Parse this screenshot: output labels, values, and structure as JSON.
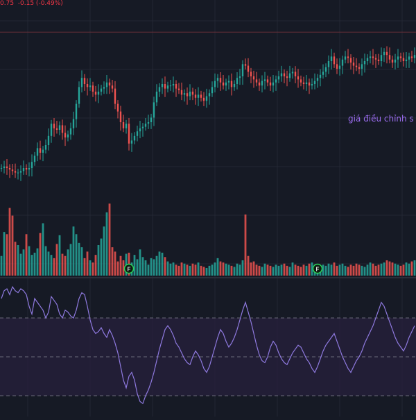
{
  "legend": {
    "close_fragment": "0.75",
    "change": "-0.15 (-0.49%)"
  },
  "annotation": {
    "text": "giá điều chỉnh s"
  },
  "colors": {
    "background": "#161a25",
    "grid": "#232733",
    "up": "#26a69a",
    "down": "#ef5350",
    "price_line": "#6b2f3a",
    "rsi_line": "#8f7ae0",
    "rsi_band": "#261f3b",
    "rsi_dash": "#6b6b7a",
    "annotation": "#9b6cf0",
    "event_marker": "#2bd45a"
  },
  "icons": {
    "event_marker": "F"
  },
  "chart_data": [
    {
      "type": "candlestick",
      "panel": "price",
      "title": "",
      "xlabel": "",
      "ylabel": "",
      "x": [
        1,
        2,
        3,
        4,
        5,
        6,
        7,
        8,
        9,
        10,
        11,
        12,
        13,
        14,
        15,
        16,
        17,
        18,
        19,
        20,
        21,
        22,
        23,
        24,
        25,
        26,
        27,
        28,
        29,
        30,
        31,
        32,
        33,
        34,
        35,
        36,
        37,
        38,
        39,
        40,
        41,
        42,
        43,
        44,
        45,
        46,
        47,
        48,
        49,
        50,
        51,
        52,
        53,
        54,
        55,
        56,
        57,
        58,
        59,
        60,
        61,
        62,
        63,
        64,
        65,
        66,
        67,
        68,
        69,
        70,
        71,
        72,
        73,
        74,
        75,
        76,
        77,
        78,
        79,
        80,
        81,
        82,
        83,
        84,
        85,
        86,
        87,
        88,
        89,
        90,
        91,
        92,
        93,
        94,
        95,
        96,
        97,
        98,
        99,
        100,
        101,
        102,
        103,
        104,
        105,
        106,
        107,
        108,
        109,
        110,
        111,
        112,
        113,
        114,
        115,
        116,
        117,
        118,
        119,
        120,
        121,
        122,
        123,
        124,
        125,
        126,
        127,
        128,
        129,
        130,
        131,
        132,
        133,
        134,
        135,
        136,
        137,
        138,
        139,
        140,
        141,
        142,
        143,
        144,
        145,
        146,
        147,
        148,
        149,
        150
      ],
      "close": [
        33.0,
        33.1,
        33.0,
        32.9,
        32.8,
        32.7,
        32.7,
        32.8,
        33.0,
        32.9,
        33.0,
        33.4,
        33.8,
        34.3,
        34.0,
        34.2,
        34.5,
        35.1,
        35.9,
        35.6,
        35.5,
        35.8,
        35.3,
        35.0,
        35.2,
        35.6,
        36.2,
        37.2,
        38.3,
        38.9,
        38.5,
        38.3,
        38.4,
        38.0,
        37.8,
        38.0,
        38.2,
        38.3,
        38.6,
        38.4,
        38.2,
        37.2,
        36.7,
        36.0,
        35.6,
        35.9,
        34.6,
        34.8,
        35.1,
        35.4,
        35.6,
        35.7,
        35.9,
        36.0,
        36.3,
        37.3,
        38.0,
        38.3,
        38.5,
        38.2,
        38.4,
        38.4,
        38.5,
        38.2,
        38.1,
        37.8,
        37.9,
        37.7,
        38.0,
        37.8,
        37.6,
        37.8,
        37.6,
        37.4,
        37.7,
        37.9,
        38.3,
        38.7,
        38.9,
        38.6,
        38.4,
        38.6,
        38.7,
        38.3,
        38.5,
        38.9,
        39.0,
        39.8,
        39.7,
        39.3,
        39.0,
        38.8,
        38.6,
        38.4,
        38.7,
        38.8,
        38.6,
        38.4,
        38.6,
        38.8,
        39.0,
        39.2,
        39.0,
        38.9,
        39.2,
        39.3,
        39.0,
        38.8,
        38.6,
        38.5,
        38.6,
        38.4,
        38.5,
        38.7,
        38.9,
        39.1,
        39.3,
        39.6,
        40.0,
        40.3,
        39.8,
        39.5,
        39.7,
        40.1,
        40.3,
        40.2,
        39.9,
        39.7,
        39.6,
        39.5,
        39.8,
        40.0,
        40.2,
        40.3,
        40.2,
        40.1,
        40.0,
        40.4,
        40.6,
        40.4,
        40.1,
        39.9,
        40.1,
        40.3,
        40.2,
        40.0,
        40.1,
        40.3,
        40.2,
        40.4
      ],
      "price_line": 41.9,
      "ylim": [
        29.0,
        44.0
      ]
    },
    {
      "type": "bar",
      "panel": "volume",
      "title": "",
      "values": [
        18,
        40,
        38,
        62,
        55,
        31,
        28,
        20,
        24,
        38,
        27,
        19,
        21,
        25,
        39,
        48,
        27,
        22,
        19,
        16,
        29,
        37,
        20,
        18,
        24,
        29,
        45,
        38,
        30,
        26,
        16,
        22,
        14,
        12,
        19,
        28,
        34,
        45,
        58,
        66,
        26,
        22,
        13,
        18,
        14,
        20,
        21,
        12,
        19,
        15,
        24,
        17,
        14,
        10,
        16,
        15,
        18,
        22,
        21,
        17,
        13,
        11,
        12,
        10,
        9,
        12,
        11,
        10,
        9,
        11,
        10,
        12,
        9,
        8,
        7,
        9,
        10,
        12,
        16,
        13,
        12,
        11,
        10,
        9,
        8,
        11,
        10,
        14,
        56,
        18,
        12,
        13,
        10,
        9,
        8,
        11,
        10,
        9,
        8,
        10,
        9,
        10,
        11,
        9,
        8,
        12,
        10,
        9,
        8,
        10,
        9,
        11,
        12,
        10,
        9,
        8,
        10,
        9,
        11,
        10,
        12,
        9,
        10,
        11,
        9,
        8,
        10,
        9,
        11,
        10,
        9,
        8,
        10,
        12,
        11,
        9,
        10,
        11,
        12,
        14,
        13,
        12,
        11,
        10,
        9,
        10,
        12,
        11,
        13,
        14
      ],
      "ylim": [
        0,
        70
      ]
    },
    {
      "type": "line",
      "panel": "rsi",
      "title": "",
      "values": [
        80,
        84,
        85,
        82,
        86,
        84,
        83,
        85,
        84,
        82,
        76,
        72,
        80,
        78,
        76,
        74,
        70,
        73,
        81,
        79,
        77,
        72,
        70,
        74,
        73,
        71,
        70,
        74,
        80,
        83,
        82,
        76,
        69,
        64,
        62,
        63,
        65,
        62,
        60,
        64,
        61,
        57,
        52,
        45,
        38,
        34,
        40,
        42,
        38,
        31,
        27,
        26,
        30,
        33,
        37,
        42,
        48,
        54,
        59,
        64,
        66,
        64,
        61,
        57,
        55,
        52,
        49,
        47,
        46,
        50,
        53,
        51,
        48,
        44,
        42,
        45,
        50,
        55,
        60,
        64,
        62,
        58,
        55,
        57,
        60,
        64,
        69,
        74,
        78,
        73,
        68,
        62,
        56,
        51,
        48,
        47,
        50,
        55,
        58,
        56,
        52,
        49,
        47,
        46,
        49,
        52,
        54,
        56,
        55,
        52,
        49,
        47,
        44,
        42,
        45,
        49,
        53,
        56,
        58,
        60,
        62,
        58,
        54,
        50,
        47,
        44,
        42,
        45,
        48,
        50,
        53,
        57,
        60,
        63,
        66,
        70,
        74,
        78,
        76,
        72,
        68,
        64,
        60,
        57,
        55,
        53,
        56,
        60,
        63,
        66
      ],
      "ylim": [
        20,
        90
      ],
      "bands": [
        70,
        50,
        30
      ]
    }
  ]
}
